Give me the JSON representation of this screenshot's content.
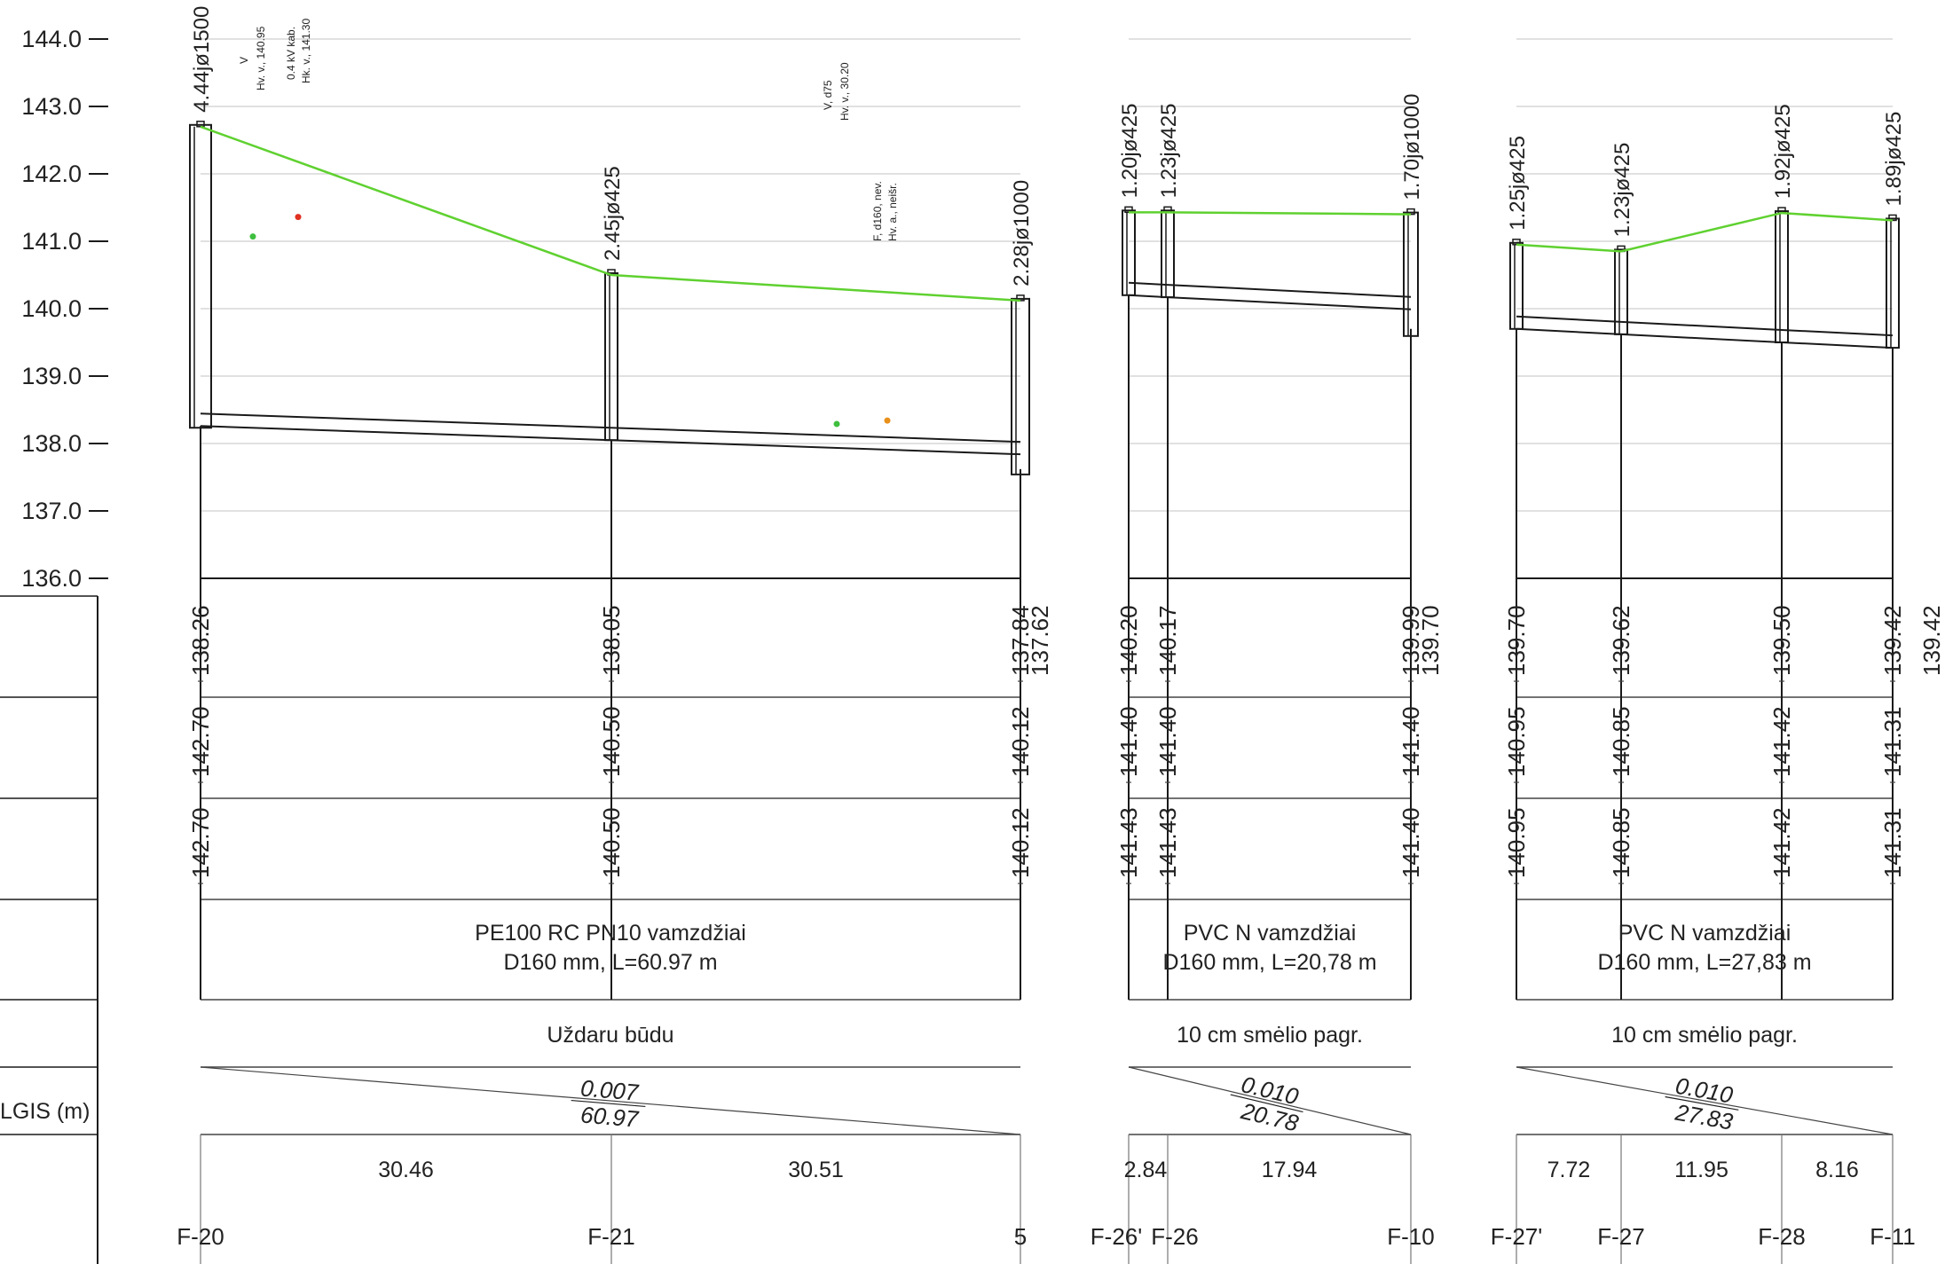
{
  "axis": {
    "ymin": 136.0,
    "ymax": 144.0,
    "ticks": [
      "144.0",
      "143.0",
      "142.0",
      "141.0",
      "140.0",
      "139.0",
      "138.0",
      "137.0",
      "136.0"
    ]
  },
  "left_row_label": "LGIS (m)",
  "manholes": [
    {
      "id": "F-20",
      "label": "4.44jø1500",
      "ground": 142.7,
      "bottom": 138.26
    },
    {
      "id": "F-21",
      "label": "2.45jø425",
      "ground": 140.5,
      "bottom": 138.05
    },
    {
      "id": "5",
      "label": "2.28jø1000",
      "ground": 140.12,
      "bottom": 137.62
    },
    {
      "id": "F-26'",
      "label": "1.20jø425",
      "ground": 141.43,
      "bottom": 140.2
    },
    {
      "id": "F-26",
      "label": "1.23jø425",
      "ground": 141.43,
      "bottom": 140.17
    },
    {
      "id": "F-10",
      "label": "1.70jø1000",
      "ground": 141.4,
      "bottom": 139.7
    },
    {
      "id": "F-27'",
      "label": "1.25jø425",
      "ground": 140.95,
      "bottom": 139.7
    },
    {
      "id": "F-27",
      "label": "1.23jø425",
      "ground": 140.85,
      "bottom": 139.62
    },
    {
      "id": "F-28",
      "label": "1.92jø425",
      "ground": 141.42,
      "bottom": 139.5
    },
    {
      "id": "F-11",
      "label": "1.89jø425",
      "ground": 141.31,
      "bottom": 139.42
    }
  ],
  "row_invert": [
    {
      "node": "F-20",
      "values": [
        "138.26"
      ]
    },
    {
      "node": "F-21",
      "values": [
        "138.05"
      ]
    },
    {
      "node": "5",
      "values": [
        "137.84",
        "137.62"
      ]
    },
    {
      "node": "F-26'",
      "values": [
        "140.20"
      ]
    },
    {
      "node": "F-26",
      "values": [
        "140.17"
      ]
    },
    {
      "node": "F-10",
      "values": [
        "139.99",
        "139.70"
      ]
    },
    {
      "node": "F-27'",
      "values": [
        "139.70"
      ]
    },
    {
      "node": "F-27",
      "values": [
        "139.62"
      ]
    },
    {
      "node": "F-28",
      "values": [
        "139.50"
      ]
    },
    {
      "node": "F-11",
      "values": [
        "139.42",
        "139.42"
      ]
    }
  ],
  "row_ground_design": [
    "142.70",
    "140.50",
    "140.12",
    "141.40",
    "141.40",
    "141.40",
    "140.95",
    "140.85",
    "141.42",
    "141.31"
  ],
  "row_ground_existing": [
    "142.70",
    "140.50",
    "140.12",
    "141.43",
    "141.43",
    "141.40",
    "140.95",
    "140.85",
    "141.42",
    "141.31"
  ],
  "sections": [
    {
      "pipe_line1": "PE100 RC PN10 vamzdžiai",
      "pipe_line2": "D160 mm, L=60.97 m",
      "method": "Uždaru būdu",
      "slope": "0.007",
      "length": "60.97"
    },
    {
      "pipe_line1": "PVC N vamzdžiai",
      "pipe_line2": "D160 mm, L=20,78 m",
      "method": "10 cm smėlio pagr.",
      "slope": "0.010",
      "length": "20.78"
    },
    {
      "pipe_line1": "PVC N vamzdžiai",
      "pipe_line2": "D160 mm, L=27,83 m",
      "method": "10 cm smėlio pagr.",
      "slope": "0.010",
      "length": "27.83"
    }
  ],
  "distances": [
    "30.46",
    "30.51",
    "2.84",
    "17.94",
    "7.72",
    "11.95",
    "8.16"
  ],
  "node_labels": [
    "F-20",
    "F-21",
    "5",
    "F-26'",
    "F-26",
    "F-10",
    "F-27'",
    "F-27",
    "F-28",
    "F-11"
  ],
  "annotations": {
    "cross1_top": "V",
    "cross1_bottom": "Hv. v., 140.95",
    "cross2_top": "0.4 kV kab.",
    "cross2_bottom": "Hk. v., 141.30",
    "cross3_top": "V, d75",
    "cross3_bottom": "Hv. v., 30.20",
    "cross4_top": "F, d160, nev.",
    "cross4_bottom": "Hv. a., neišr."
  },
  "colors": {
    "ground_line": "#5fd130",
    "structure": "#1a1a1a",
    "grid": "#cfcfcf",
    "marker_green": "#3fbf3f",
    "marker_red": "#e03020",
    "marker_orange": "#e8901a"
  }
}
